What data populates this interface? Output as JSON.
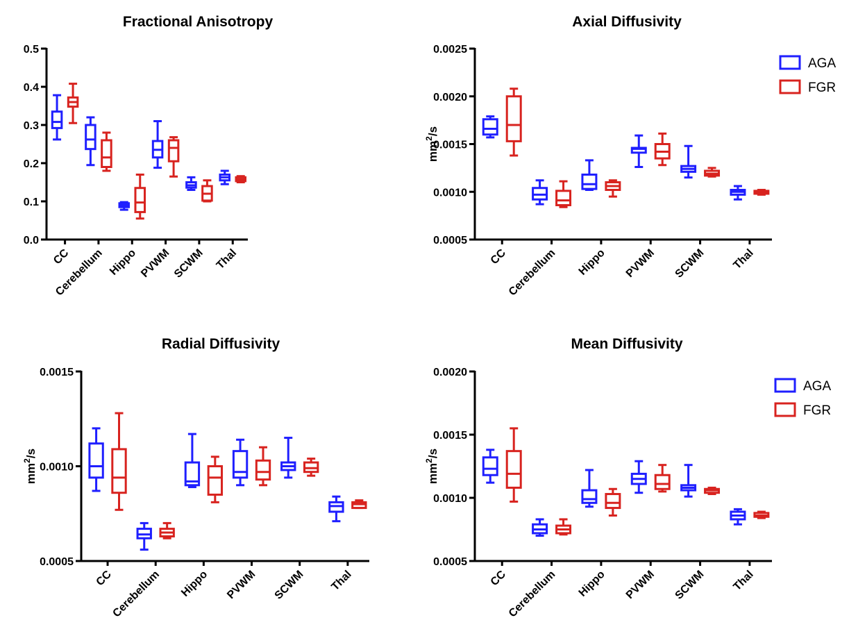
{
  "figure": {
    "colors": {
      "AGA": "#1f1fff",
      "FGR": "#d8231f"
    }
  },
  "chart_data": [
    {
      "type": "box",
      "title": "Fractional Anisotropy",
      "ylabel": "",
      "ylim": [
        0,
        0.5
      ],
      "yticks": [
        "0.0",
        "0.1",
        "0.2",
        "0.3",
        "0.4",
        "0.5"
      ],
      "ytick_values": [
        0,
        0.1,
        0.2,
        0.3,
        0.4,
        0.5
      ],
      "categories": [
        "CC",
        "Cerebellum",
        "Hippo",
        "PVWM",
        "SCWM",
        "Thal"
      ],
      "legend": [],
      "series": [
        {
          "name": "AGA",
          "boxes": [
            {
              "min": 0.262,
              "q1": 0.292,
              "median": 0.308,
              "q3": 0.335,
              "max": 0.378
            },
            {
              "min": 0.195,
              "q1": 0.237,
              "median": 0.262,
              "q3": 0.3,
              "max": 0.32
            },
            {
              "min": 0.078,
              "q1": 0.085,
              "median": 0.09,
              "q3": 0.095,
              "max": 0.098
            },
            {
              "min": 0.188,
              "q1": 0.215,
              "median": 0.235,
              "q3": 0.258,
              "max": 0.31
            },
            {
              "min": 0.13,
              "q1": 0.136,
              "median": 0.142,
              "q3": 0.15,
              "max": 0.163
            },
            {
              "min": 0.145,
              "q1": 0.155,
              "median": 0.163,
              "q3": 0.17,
              "max": 0.18
            }
          ]
        },
        {
          "name": "FGR",
          "boxes": [
            {
              "min": 0.305,
              "q1": 0.348,
              "median": 0.36,
              "q3": 0.372,
              "max": 0.408
            },
            {
              "min": 0.18,
              "q1": 0.19,
              "median": 0.215,
              "q3": 0.26,
              "max": 0.28
            },
            {
              "min": 0.055,
              "q1": 0.072,
              "median": 0.097,
              "q3": 0.135,
              "max": 0.17
            },
            {
              "min": 0.165,
              "q1": 0.205,
              "median": 0.24,
              "q3": 0.26,
              "max": 0.268
            },
            {
              "min": 0.1,
              "q1": 0.102,
              "median": 0.12,
              "q3": 0.14,
              "max": 0.155
            },
            {
              "min": 0.15,
              "q1": 0.153,
              "median": 0.158,
              "q3": 0.163,
              "max": 0.166
            }
          ]
        }
      ]
    },
    {
      "type": "box",
      "title": "Axial Diffusivity",
      "ylabel": "mm2/s",
      "ylim": [
        0.0005,
        0.0025
      ],
      "yticks": [
        "0.0005",
        "0.0010",
        "0.0015",
        "0.0020",
        "0.0025"
      ],
      "ytick_values": [
        0.0005,
        0.001,
        0.0015,
        0.002,
        0.0025
      ],
      "categories": [
        "CC",
        "Cerebellum",
        "Hippo",
        "PVWM",
        "SCWM",
        "Thal"
      ],
      "legend": [
        "AGA",
        "FGR"
      ],
      "series": [
        {
          "name": "AGA",
          "boxes": [
            {
              "min": 0.00157,
              "q1": 0.0016,
              "median": 0.00166,
              "q3": 0.00176,
              "max": 0.00179
            },
            {
              "min": 0.00087,
              "q1": 0.00092,
              "median": 0.00097,
              "q3": 0.00104,
              "max": 0.00112
            },
            {
              "min": 0.00102,
              "q1": 0.00103,
              "median": 0.00108,
              "q3": 0.00118,
              "max": 0.00133
            },
            {
              "min": 0.00126,
              "q1": 0.00141,
              "median": 0.00145,
              "q3": 0.00146,
              "max": 0.00159
            },
            {
              "min": 0.00115,
              "q1": 0.00121,
              "median": 0.00124,
              "q3": 0.00127,
              "max": 0.00148
            },
            {
              "min": 0.00092,
              "q1": 0.00097,
              "median": 0.001,
              "q3": 0.00102,
              "max": 0.00106
            }
          ]
        },
        {
          "name": "FGR",
          "boxes": [
            {
              "min": 0.00138,
              "q1": 0.00153,
              "median": 0.0017,
              "q3": 0.002,
              "max": 0.00208
            },
            {
              "min": 0.00084,
              "q1": 0.00086,
              "median": 0.00091,
              "q3": 0.00101,
              "max": 0.00111
            },
            {
              "min": 0.00095,
              "q1": 0.00102,
              "median": 0.00106,
              "q3": 0.0011,
              "max": 0.00112
            },
            {
              "min": 0.00128,
              "q1": 0.00135,
              "median": 0.00142,
              "q3": 0.0015,
              "max": 0.00161
            },
            {
              "min": 0.00116,
              "q1": 0.00117,
              "median": 0.00119,
              "q3": 0.00122,
              "max": 0.00125
            },
            {
              "min": 0.00097,
              "q1": 0.00098,
              "median": 0.001,
              "q3": 0.00101,
              "max": 0.00102
            }
          ]
        }
      ]
    },
    {
      "type": "box",
      "title": "Radial Diffusivity",
      "ylabel": "mm2/s",
      "ylim": [
        0.0005,
        0.0015
      ],
      "yticks": [
        "0.0005",
        "0.0010",
        "0.0015"
      ],
      "ytick_values": [
        0.0005,
        0.001,
        0.0015
      ],
      "categories": [
        "CC",
        "Cerebellum",
        "Hippo",
        "PVWM",
        "SCWM",
        "Thal"
      ],
      "legend": [],
      "series": [
        {
          "name": "AGA",
          "boxes": [
            {
              "min": 0.00087,
              "q1": 0.00094,
              "median": 0.001,
              "q3": 0.00112,
              "max": 0.0012
            },
            {
              "min": 0.00056,
              "q1": 0.00062,
              "median": 0.00064,
              "q3": 0.00067,
              "max": 0.0007
            },
            {
              "min": 0.00089,
              "q1": 0.0009,
              "median": 0.00092,
              "q3": 0.00102,
              "max": 0.00117
            },
            {
              "min": 0.0009,
              "q1": 0.00094,
              "median": 0.00097,
              "q3": 0.00108,
              "max": 0.00114
            },
            {
              "min": 0.00094,
              "q1": 0.00098,
              "median": 0.001,
              "q3": 0.00102,
              "max": 0.00115
            },
            {
              "min": 0.00071,
              "q1": 0.00076,
              "median": 0.00079,
              "q3": 0.00081,
              "max": 0.00084
            }
          ]
        },
        {
          "name": "FGR",
          "boxes": [
            {
              "min": 0.00077,
              "q1": 0.00086,
              "median": 0.00094,
              "q3": 0.00109,
              "max": 0.00128
            },
            {
              "min": 0.00062,
              "q1": 0.00063,
              "median": 0.00065,
              "q3": 0.00067,
              "max": 0.0007
            },
            {
              "min": 0.00081,
              "q1": 0.00085,
              "median": 0.00094,
              "q3": 0.001,
              "max": 0.00105
            },
            {
              "min": 0.0009,
              "q1": 0.00093,
              "median": 0.00097,
              "q3": 0.00103,
              "max": 0.0011
            },
            {
              "min": 0.00095,
              "q1": 0.00097,
              "median": 0.00099,
              "q3": 0.00102,
              "max": 0.00104
            },
            {
              "min": 0.00078,
              "q1": 0.00078,
              "median": 0.0008,
              "q3": 0.00081,
              "max": 0.00082
            }
          ]
        }
      ]
    },
    {
      "type": "box",
      "title": "Mean Diffusivity",
      "ylabel": "mm2/s",
      "ylim": [
        0.0005,
        0.002
      ],
      "yticks": [
        "0.0005",
        "0.0010",
        "0.0015",
        "0.0020"
      ],
      "ytick_values": [
        0.0005,
        0.001,
        0.0015,
        0.002
      ],
      "categories": [
        "CC",
        "Cerebellum",
        "Hippo",
        "PVWM",
        "SCWM",
        "Thal"
      ],
      "legend": [
        "AGA",
        "FGR"
      ],
      "series": [
        {
          "name": "AGA",
          "boxes": [
            {
              "min": 0.00112,
              "q1": 0.00118,
              "median": 0.00123,
              "q3": 0.00132,
              "max": 0.00138
            },
            {
              "min": 0.0007,
              "q1": 0.00072,
              "median": 0.00075,
              "q3": 0.00079,
              "max": 0.00083
            },
            {
              "min": 0.00093,
              "q1": 0.00096,
              "median": 0.00099,
              "q3": 0.00106,
              "max": 0.00122
            },
            {
              "min": 0.00104,
              "q1": 0.00111,
              "median": 0.00115,
              "q3": 0.00119,
              "max": 0.00129
            },
            {
              "min": 0.00101,
              "q1": 0.00106,
              "median": 0.00108,
              "q3": 0.0011,
              "max": 0.00126
            },
            {
              "min": 0.00079,
              "q1": 0.00083,
              "median": 0.00086,
              "q3": 0.00089,
              "max": 0.00091
            }
          ]
        },
        {
          "name": "FGR",
          "boxes": [
            {
              "min": 0.00097,
              "q1": 0.00108,
              "median": 0.00119,
              "q3": 0.00137,
              "max": 0.00155
            },
            {
              "min": 0.00071,
              "q1": 0.00072,
              "median": 0.00075,
              "q3": 0.00078,
              "max": 0.00083
            },
            {
              "min": 0.00086,
              "q1": 0.00092,
              "median": 0.00096,
              "q3": 0.00103,
              "max": 0.00107
            },
            {
              "min": 0.00105,
              "q1": 0.00107,
              "median": 0.00111,
              "q3": 0.00118,
              "max": 0.00126
            },
            {
              "min": 0.00103,
              "q1": 0.00104,
              "median": 0.00106,
              "q3": 0.00107,
              "max": 0.00108
            },
            {
              "min": 0.00084,
              "q1": 0.00085,
              "median": 0.00086,
              "q3": 0.00088,
              "max": 0.00089
            }
          ]
        }
      ]
    }
  ]
}
